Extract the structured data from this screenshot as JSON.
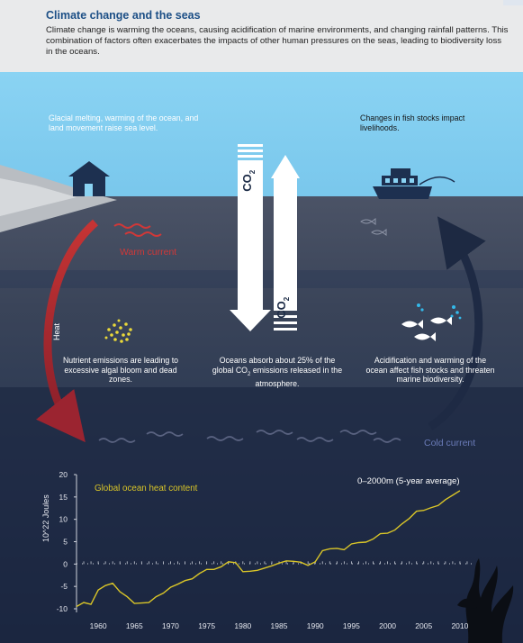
{
  "header": {
    "title": "Climate change and the seas",
    "body": "Climate change is warming the oceans, causing acidification of marine environments, and changing rainfall patterns. This combination of factors often exacerbates the impacts of other human pressures on the seas, leading to biodiversity loss in the oceans."
  },
  "scene": {
    "glacial_text": "Glacial melting, warming of the ocean, and land movement raise sea level.",
    "fish_text": "Changes in fish stocks impact livelihoods.",
    "co2_label": "CO",
    "co2_sub": "2",
    "warm_current": "Warm current",
    "cold_current": "Cold current",
    "heat_label": "Heat",
    "nutrient_text": "Nutrient emissions are leading to excessive algal bloom and dead zones.",
    "oceans_text_a": "Oceans absorb about 25% of the global CO",
    "oceans_text_sub": "2",
    "oceans_text_b": " emissions released in the atmosphere.",
    "acid_text": "Acidification and warming of the ocean affect fish stocks and threaten marine biodiversity.",
    "colors": {
      "sky": "#8ad3f3",
      "horizon": "#4d5566",
      "ocean_mid": "#293750",
      "ocean_deep": "#1b2741",
      "warm": "#d03838",
      "cold_arrow": "#1e2a44",
      "series": "#d9c528"
    },
    "icons": [
      "house-icon",
      "boat-icon",
      "fish-icon",
      "bubbles-icon",
      "algae-icon",
      "seaweed-icon"
    ]
  },
  "chart_data": {
    "type": "line",
    "title": "Global ocean heat content",
    "subtitle": "0–2000m (5-year average)",
    "xlabel": "",
    "ylabel": "10^22 Joules",
    "xlim": [
      1957,
      2012
    ],
    "ylim": [
      -10,
      20
    ],
    "xticks": [
      1960,
      1965,
      1970,
      1975,
      1980,
      1985,
      1990,
      1995,
      2000,
      2005,
      2010
    ],
    "yticks": [
      20,
      15,
      10,
      5,
      0,
      -5,
      -10
    ],
    "grid": false,
    "x": [
      1957,
      1958,
      1959,
      1960,
      1961,
      1962,
      1963,
      1964,
      1965,
      1966,
      1967,
      1968,
      1969,
      1970,
      1971,
      1972,
      1973,
      1974,
      1975,
      1976,
      1977,
      1978,
      1979,
      1980,
      1981,
      1982,
      1983,
      1984,
      1985,
      1986,
      1987,
      1988,
      1989,
      1990,
      1991,
      1992,
      1993,
      1994,
      1995,
      1996,
      1997,
      1998,
      1999,
      2000,
      2001,
      2002,
      2003,
      2004,
      2005,
      2006,
      2007,
      2008,
      2009,
      2010
    ],
    "series": [
      {
        "values": [
          -9.5,
          -8.6,
          -9.0,
          -5.8,
          -4.8,
          -4.3,
          -6.2,
          -7.3,
          -8.8,
          -8.7,
          -8.6,
          -7.3,
          -6.5,
          -5.2,
          -4.5,
          -3.7,
          -3.3,
          -2.1,
          -1.2,
          -1.2,
          -0.6,
          0.5,
          0.3,
          -1.7,
          -1.6,
          -1.4,
          -0.9,
          -0.4,
          0.2,
          0.7,
          0.6,
          0.4,
          -0.3,
          0.5,
          3.0,
          3.4,
          3.5,
          3.2,
          4.5,
          4.8,
          4.9,
          5.6,
          6.8,
          6.9,
          7.6,
          9.0,
          10.2,
          11.8,
          12.0,
          12.6,
          13.1,
          14.4,
          15.4,
          16.4
        ]
      }
    ]
  }
}
